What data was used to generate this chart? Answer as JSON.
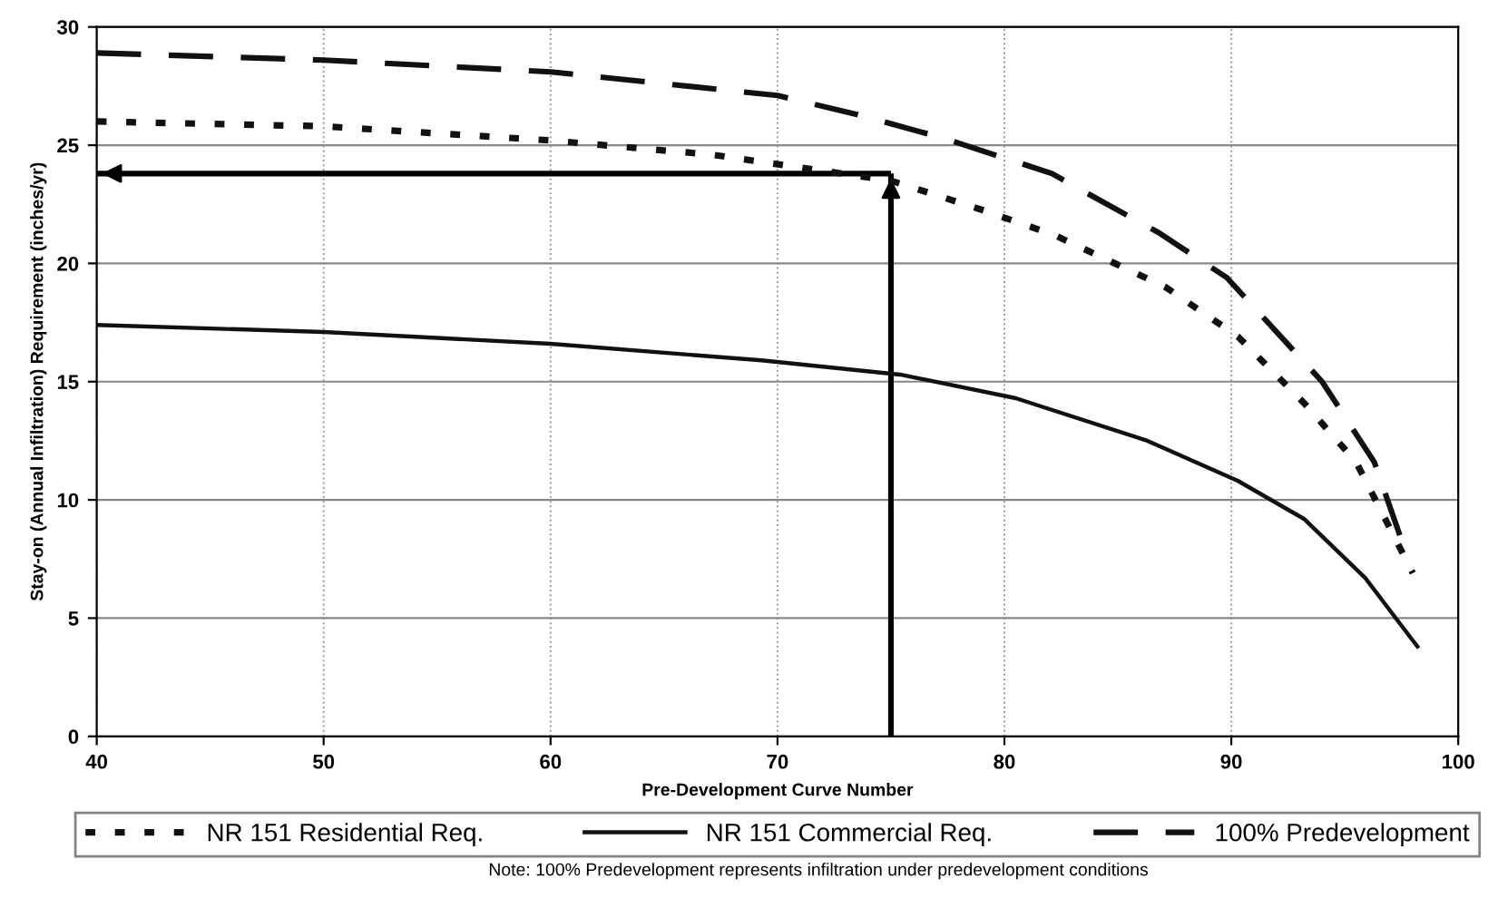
{
  "chart_data": {
    "type": "line",
    "xlabel": "Pre-Development Curve Number",
    "ylabel": "Stay-on (Annual Infiltration) Requirement (inches/yr)",
    "xlim": [
      40,
      100
    ],
    "ylim": [
      0,
      30
    ],
    "xticks": [
      40,
      50,
      60,
      70,
      80,
      90,
      100
    ],
    "yticks": [
      0,
      5,
      10,
      15,
      20,
      25,
      30
    ],
    "grid": true,
    "legend": "bottom",
    "marker": "none",
    "series": [
      {
        "name": "NR 151 Residential Req.",
        "color": "#111111",
        "line_style": "dotted",
        "x": [
          40,
          50,
          60,
          67.1,
          75,
          78.9,
          82.2,
          87.1,
          90.3,
          93.2,
          95.5,
          98
        ],
        "values": [
          26.0,
          25.8,
          25.2,
          24.6,
          23.5,
          22.3,
          21.2,
          19.0,
          16.9,
          14.1,
          11.6,
          6.9
        ]
      },
      {
        "name": "NR 151 Commercial Req.",
        "color": "#111111",
        "line_style": "solid",
        "x": [
          40,
          50,
          60,
          69.3,
          75.4,
          80.5,
          86.3,
          90.3,
          93.2,
          95.9,
          98.2
        ],
        "values": [
          17.4,
          17.1,
          16.6,
          15.9,
          15.3,
          14.3,
          12.5,
          10.8,
          9.2,
          6.7,
          3.8
        ]
      },
      {
        "name": "100% Predevelopment",
        "color": "#111111",
        "line_style": "dashed",
        "x": [
          40,
          50,
          60,
          70,
          73.5,
          77.3,
          82.1,
          83.4,
          86.8,
          89.8,
          94,
          96.3,
          97.5
        ],
        "values": [
          28.9,
          28.6,
          28.1,
          27.1,
          26.3,
          25.3,
          23.8,
          23.1,
          21.3,
          19.4,
          15.0,
          11.6,
          8.3
        ]
      }
    ],
    "ref_lines": [
      {
        "axis": "x",
        "value": 75,
        "color": "#000000"
      },
      {
        "axis": "y",
        "value": 23.8,
        "color": "#000000"
      }
    ],
    "annotations": [
      "Note: 100% Predevelopment represents infiltration under predevelopment conditions"
    ]
  }
}
